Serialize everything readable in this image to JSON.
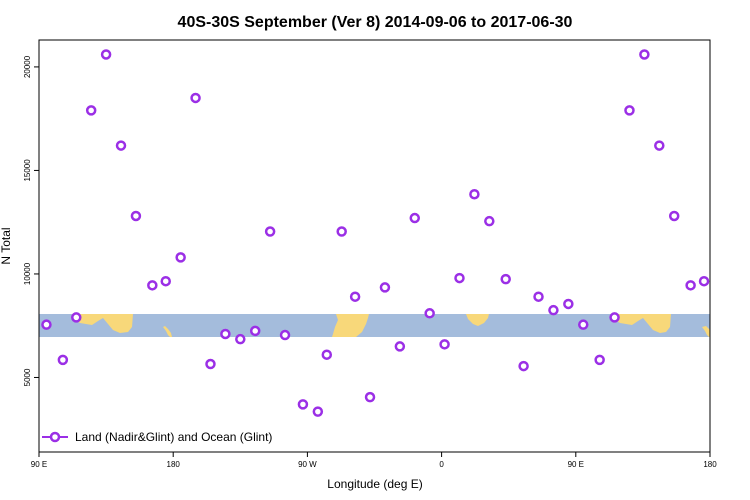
{
  "chart_data": {
    "type": "scatter",
    "title": "40S-30S September (Ver 8)   2014-09-06 to 2017-06-30",
    "xlabel": "Longitude (deg E)",
    "ylabel": "N Total",
    "xlim": [
      90,
      540
    ],
    "ylim": [
      1400,
      21300
    ],
    "x_ticks": [
      {
        "value": 90,
        "label": "90 E"
      },
      {
        "value": 180,
        "label": "180"
      },
      {
        "value": 270,
        "label": "90 W"
      },
      {
        "value": 360,
        "label": "0"
      },
      {
        "value": 450,
        "label": "90 E"
      },
      {
        "value": 540,
        "label": "180"
      }
    ],
    "y_ticks": [
      {
        "value": 5000,
        "label": "5000"
      },
      {
        "value": 10000,
        "label": "10000"
      },
      {
        "value": 15000,
        "label": "15000"
      },
      {
        "value": 20000,
        "label": "20000"
      }
    ],
    "legend": {
      "position": "bottom-left",
      "label": "Land (Nadir&Glint) and Ocean (Glint)"
    },
    "colors": {
      "marker": "#9B2FE6",
      "ocean": "#A4BCDC",
      "land": "#F8D87A"
    },
    "series": [
      {
        "name": "Land (Nadir&Glint) and Ocean (Glint)",
        "points": [
          [
            95,
            7550
          ],
          [
            106,
            5850
          ],
          [
            115,
            7900
          ],
          [
            125,
            17900
          ],
          [
            135,
            20600
          ],
          [
            145,
            16200
          ],
          [
            155,
            12800
          ],
          [
            166,
            9450
          ],
          [
            175,
            9650
          ],
          [
            185,
            10800
          ],
          [
            195,
            18500
          ],
          [
            205,
            5650
          ],
          [
            215,
            7100
          ],
          [
            225,
            6850
          ],
          [
            235,
            7250
          ],
          [
            245,
            12050
          ],
          [
            255,
            7050
          ],
          [
            267,
            3700
          ],
          [
            277,
            3350
          ],
          [
            283,
            6100
          ],
          [
            293,
            12050
          ],
          [
            302,
            8900
          ],
          [
            312,
            4050
          ],
          [
            322,
            9350
          ],
          [
            332,
            6500
          ],
          [
            342,
            12700
          ],
          [
            352,
            8100
          ],
          [
            362,
            6600
          ],
          [
            372,
            9800
          ],
          [
            382,
            13850
          ],
          [
            392,
            12550
          ],
          [
            403,
            9750
          ],
          [
            415,
            5550
          ],
          [
            425,
            8900
          ],
          [
            435,
            8250
          ],
          [
            445,
            8550
          ],
          [
            455,
            7550
          ],
          [
            466,
            5850
          ],
          [
            476,
            7900
          ],
          [
            486,
            17900
          ],
          [
            496,
            20600
          ],
          [
            506,
            16200
          ],
          [
            516,
            12800
          ],
          [
            527,
            9450
          ],
          [
            536,
            9650
          ]
        ]
      }
    ]
  }
}
